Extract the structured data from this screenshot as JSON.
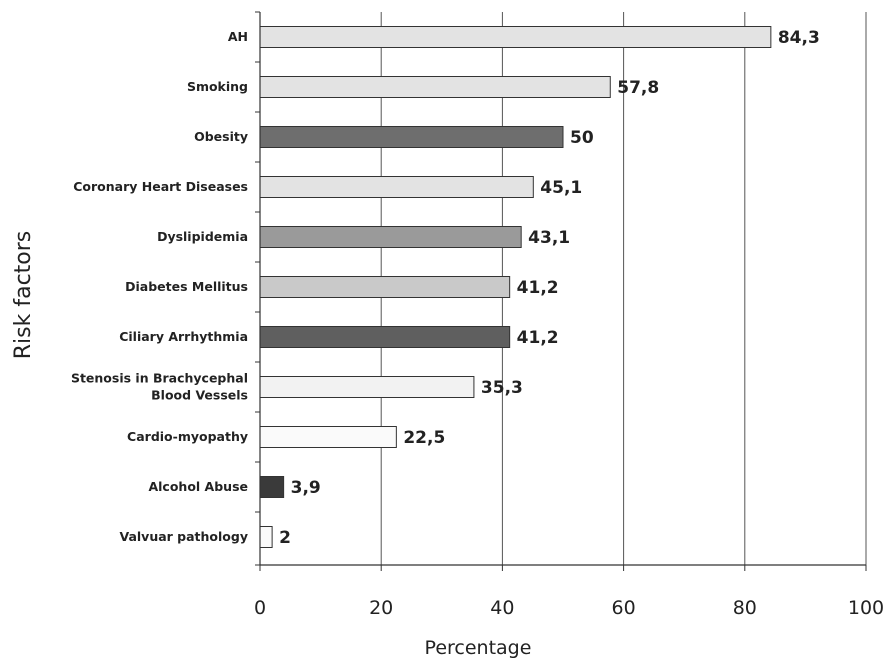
{
  "chart_data": {
    "type": "bar",
    "orientation": "horizontal",
    "title": "",
    "xlabel": "Percentage",
    "ylabel": "Risk factors",
    "xlim": [
      0,
      100
    ],
    "xticks": [
      "0",
      "20",
      "40",
      "60",
      "80",
      "100"
    ],
    "grid": "vertical",
    "legend": "none",
    "categories": [
      [
        "AH"
      ],
      [
        "Smoking"
      ],
      [
        "Obesity"
      ],
      [
        "Coronary Heart Diseases"
      ],
      [
        "Dyslipidemia"
      ],
      [
        "Diabetes Mellitus"
      ],
      [
        "Ciliary Arrhythmia"
      ],
      [
        "Stenosis in Brachycephal",
        "Blood Vessels"
      ],
      [
        "Cardio-myopathy"
      ],
      [
        "Alcohol Abuse"
      ],
      [
        "Valvuar pathology"
      ]
    ],
    "values": [
      84.3,
      57.8,
      50,
      45.1,
      43.1,
      41.2,
      41.2,
      35.3,
      22.5,
      3.9,
      2
    ],
    "value_labels": [
      "84,3",
      "57,8",
      "50",
      "45,1",
      "43,1",
      "41,2",
      "41,2",
      "35,3",
      "22,5",
      "3,9",
      "2"
    ],
    "bar_colors": [
      "#e3e3e3",
      "#e3e3e3",
      "#6e6e6e",
      "#e3e3e3",
      "#9a9a9a",
      "#c9c9c9",
      "#5f5f5f",
      "#f2f2f2",
      "#fafafa",
      "#3a3a3a",
      "#fafafa"
    ]
  }
}
